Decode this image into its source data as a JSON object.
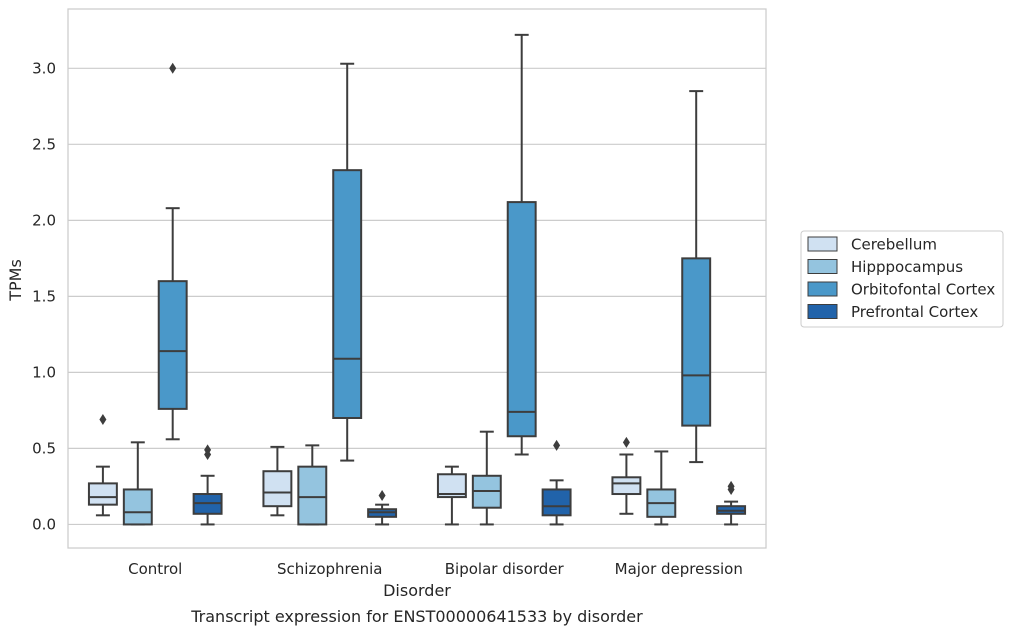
{
  "chart_data": {
    "type": "box",
    "title": "",
    "caption": "Transcript expression for ENST00000641533 by disorder",
    "xlabel": "Disorder",
    "ylabel": "TPMs",
    "ylim": [
      -0.155,
      3.39
    ],
    "yticks": [
      "0.0",
      "0.5",
      "1.0",
      "1.5",
      "2.0",
      "2.5",
      "3.0"
    ],
    "grid": true,
    "legend_position": "right",
    "categories": [
      "Control",
      "Schizophrenia",
      "Bipolar disorder",
      "Major depression"
    ],
    "series": [
      {
        "name": "Cerebellum",
        "color": "#d0e1f2",
        "boxes": [
          {
            "whislo": 0.06,
            "q1": 0.13,
            "med": 0.18,
            "q3": 0.27,
            "whishi": 0.38,
            "fliers": [
              0.69
            ]
          },
          {
            "whislo": 0.06,
            "q1": 0.12,
            "med": 0.21,
            "q3": 0.35,
            "whishi": 0.51,
            "fliers": []
          },
          {
            "whislo": 0.0,
            "q1": 0.18,
            "med": 0.2,
            "q3": 0.33,
            "whishi": 0.38,
            "fliers": []
          },
          {
            "whislo": 0.07,
            "q1": 0.2,
            "med": 0.27,
            "q3": 0.31,
            "whishi": 0.46,
            "fliers": [
              0.54
            ]
          }
        ]
      },
      {
        "name": "Hipppocampus",
        "color": "#94c4df",
        "boxes": [
          {
            "whislo": 0.0,
            "q1": 0.0,
            "med": 0.08,
            "q3": 0.23,
            "whishi": 0.54,
            "fliers": []
          },
          {
            "whislo": 0.0,
            "q1": 0.0,
            "med": 0.18,
            "q3": 0.38,
            "whishi": 0.52,
            "fliers": []
          },
          {
            "whislo": 0.0,
            "q1": 0.11,
            "med": 0.22,
            "q3": 0.32,
            "whishi": 0.61,
            "fliers": []
          },
          {
            "whislo": 0.0,
            "q1": 0.05,
            "med": 0.14,
            "q3": 0.23,
            "whishi": 0.48,
            "fliers": []
          }
        ]
      },
      {
        "name": "Orbitofontal Cortex",
        "color": "#4a98c9",
        "boxes": [
          {
            "whislo": 0.56,
            "q1": 0.76,
            "med": 1.14,
            "q3": 1.6,
            "whishi": 2.08,
            "fliers": [
              3.0
            ]
          },
          {
            "whislo": 0.42,
            "q1": 0.7,
            "med": 1.09,
            "q3": 2.33,
            "whishi": 3.03,
            "fliers": []
          },
          {
            "whislo": 0.46,
            "q1": 0.58,
            "med": 0.74,
            "q3": 2.12,
            "whishi": 3.22,
            "fliers": []
          },
          {
            "whislo": 0.41,
            "q1": 0.65,
            "med": 0.98,
            "q3": 1.75,
            "whishi": 2.85,
            "fliers": []
          }
        ]
      },
      {
        "name": "Prefrontal Cortex",
        "color": "#2163aa",
        "boxes": [
          {
            "whislo": 0.0,
            "q1": 0.07,
            "med": 0.14,
            "q3": 0.2,
            "whishi": 0.32,
            "fliers": [
              0.46,
              0.49
            ]
          },
          {
            "whislo": 0.0,
            "q1": 0.05,
            "med": 0.08,
            "q3": 0.1,
            "whishi": 0.13,
            "fliers": [
              0.19
            ]
          },
          {
            "whislo": 0.0,
            "q1": 0.06,
            "med": 0.12,
            "q3": 0.23,
            "whishi": 0.29,
            "fliers": [
              0.52
            ]
          },
          {
            "whislo": 0.0,
            "q1": 0.07,
            "med": 0.09,
            "q3": 0.12,
            "whishi": 0.15,
            "fliers": [
              0.23,
              0.25
            ]
          }
        ]
      }
    ]
  }
}
